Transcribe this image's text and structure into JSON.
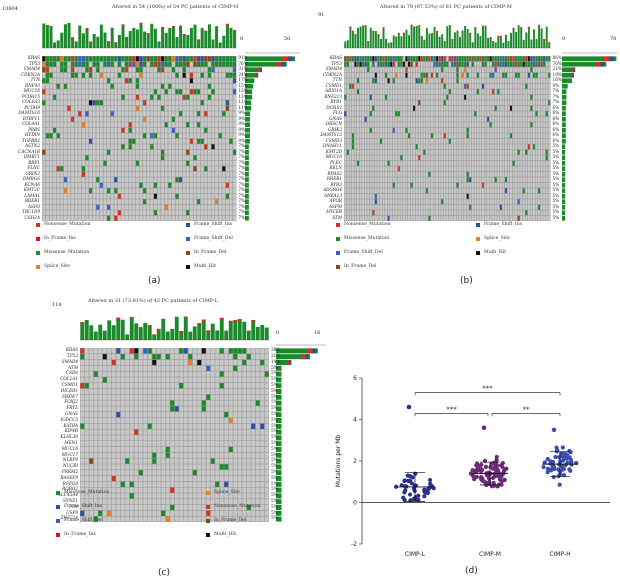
{
  "colors": {
    "missense": "#1a8a2a",
    "nonsense": "#d8321f",
    "frame_shift_ins": "#2a4fa8",
    "frame_shift_del": "#3c5cd0",
    "in_frame_ins": "#c8191e",
    "in_frame_del": "#8b4513",
    "splice": "#e8801e",
    "multi_hit": "#111111",
    "grid": "#c8c8c8",
    "scatter_l": "#2b2f8c",
    "scatter_m": "#6a2a7a",
    "scatter_h": "#3a4fb0"
  },
  "panel_a": {
    "label": "(a)",
    "title": "Altered in 54 (100%) of 54 PC patients of CIMP-H",
    "ytop": "13804",
    "bar_scale": [
      "0",
      "50"
    ],
    "genes": [
      "KRAS",
      "TP53",
      "SMAD4",
      "CDKN2A",
      "TTN",
      "RNF43",
      "MUC16",
      "PCDH15",
      "COL6A3",
      "PCDH9",
      "DAMTS16",
      "RTBP11",
      "COL4A1",
      "PBRS",
      "HYDIN",
      "TGFBR2",
      "ASTN2",
      "CACNA1B",
      "DMBT1",
      "BRF1",
      "FLNC",
      "GRIN2",
      "DMBGS",
      "KCNA6",
      "KMT2C",
      "LAMA1",
      "RREB1",
      "ASPO",
      "TBC1D9",
      "USH2A"
    ],
    "pcts": [
      "91%",
      "76%",
      "31%",
      "24%",
      "17%",
      "15%",
      "13%",
      "13%",
      "11%",
      "11%",
      "9%",
      "9%",
      "9%",
      "9%",
      "9%",
      "9%",
      "7%",
      "7%",
      "7%",
      "7%",
      "7%",
      "7%",
      "7%",
      "7%",
      "7%",
      "7%",
      "7%",
      "7%",
      "7%",
      "7%"
    ],
    "legend": [
      "Nonsense_Mutation",
      "Frame_Shift_Ins",
      "In_Frame_Ins",
      "Frame_Shift_Del",
      "Missense_Mutation",
      "In_Frame_Del",
      "Splice_Site",
      "Multi_Hit"
    ]
  },
  "panel_b": {
    "label": "(b)",
    "title": "Altered in 79 (97.53%) of 81 PC patients of CIMP-M",
    "ytop": "91",
    "bar_scale": [
      "0",
      "70"
    ],
    "genes": [
      "KRAS",
      "TP53",
      "SMAD4",
      "CDKN2A",
      "TTN",
      "CSMD1",
      "ARID1A",
      "RNF213",
      "RYR1",
      "DCHS2",
      "FLG",
      "GNAS",
      "OBSCN",
      "GRIK3",
      "DAMTS12",
      "CSMD3",
      "DNAH11",
      "KMT2D",
      "MUC16",
      "PLEC",
      "RELN",
      "RIMS2",
      "RREB1",
      "RYR3",
      "ADGRG4",
      "ANKA13",
      "APOB",
      "ASPM",
      "HYCEB",
      "ATM"
    ],
    "pcts": [
      "86%",
      "70%",
      "21%",
      "19%",
      "16%",
      "9%",
      "7%",
      "7%",
      "7%",
      "6%",
      "6%",
      "6%",
      "6%",
      "6%",
      "6%",
      "6%",
      "5%",
      "5%",
      "5%",
      "5%",
      "5%",
      "5%",
      "5%",
      "5%",
      "5%",
      "5%",
      "5%",
      "5%",
      "5%",
      "5%"
    ],
    "legend": [
      "Nonsense_Mutation",
      "Frame_Shift_Ins",
      "Missense_Mutation",
      "Splice_Site",
      "Frame_Shift_Del",
      "Multi_Hit",
      "In_Frame_Del"
    ]
  },
  "panel_c": {
    "label": "(c)",
    "title": "Altered in 31 (73.81%) of 42 PC patients of CIMP-L",
    "ytop": "118",
    "bar_scale": [
      "0",
      "16"
    ],
    "genes": [
      "KRAS",
      "TP53",
      "SMAD4",
      "ATM",
      "CSD6",
      "COL1A1",
      "CSMD1",
      "DICER1",
      "FBXW7",
      "FOXJ2",
      "FRYL",
      "GNAS",
      "IGDCC3",
      "KATBA",
      "KIF4B",
      "KLHL36",
      "MEN1",
      "MUC16",
      "MUC17",
      "NLRP9",
      "NUCBI",
      "PRRM2",
      "RASEF9",
      "RGFD8",
      "ROBO2",
      "SLC45A4",
      "SYNE1",
      "TTN",
      "USP8",
      "ZNF224"
    ],
    "pcts": [
      "38%",
      "31%",
      "14%",
      "5%",
      "5%",
      "5%",
      "5%",
      "5%",
      "5%",
      "5%",
      "5%",
      "5%",
      "5%",
      "5%",
      "5%",
      "5%",
      "5%",
      "5%",
      "5%",
      "5%",
      "5%",
      "5%",
      "5%",
      "5%",
      "5%",
      "5%",
      "5%",
      "5%",
      "5%",
      "5%"
    ],
    "legend": [
      "Missense_Mutation",
      "Splice_Site",
      "Frame_Shift_Ins",
      "Nonsense_Mutation",
      "Frame_Shift_Del",
      "In_Frame_Del",
      "In_Frame_Ins",
      "Multi_Hit"
    ]
  },
  "chart_data": {
    "type": "scatter",
    "title": "",
    "xlabel": "",
    "ylabel": "Mutations per Mb",
    "categories": [
      "CIMP-L",
      "CIMP-M",
      "CIMP-H"
    ],
    "ylim": [
      -2,
      6
    ],
    "yticks": [
      "-2",
      "0",
      "2",
      "4",
      "6"
    ],
    "means": [
      0.75,
      1.4,
      1.85
    ],
    "sd": [
      0.7,
      0.55,
      0.6
    ],
    "outliers_top": [
      4.6,
      3.6,
      3.5
    ],
    "significance": [
      {
        "pair": [
          "CIMP-L",
          "CIMP-H"
        ],
        "label": "***"
      },
      {
        "pair": [
          "CIMP-L",
          "CIMP-M"
        ],
        "label": "***"
      },
      {
        "pair": [
          "CIMP-M",
          "CIMP-H"
        ],
        "label": "**"
      }
    ],
    "panel_label": "(d)"
  }
}
